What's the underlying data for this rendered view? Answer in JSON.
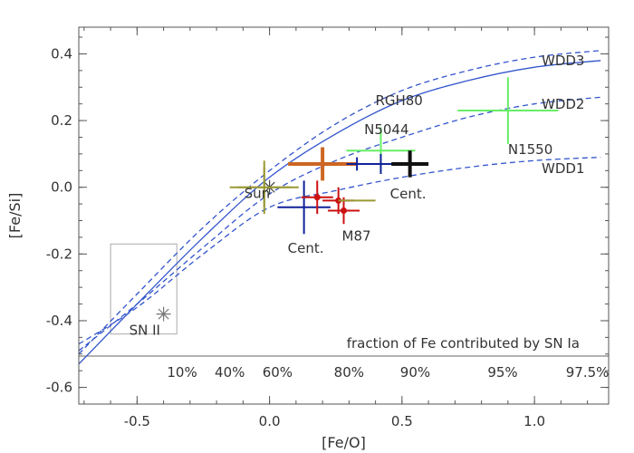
{
  "chart_data": {
    "type": "scatter",
    "title": "",
    "xlabel": "[Fe/O]",
    "ylabel": "[Fe/Si]",
    "xlim": [
      -0.72,
      1.28
    ],
    "ylim": [
      -0.65,
      0.48
    ],
    "xticks": [
      -0.5,
      0.0,
      0.5,
      1.0
    ],
    "xtick_labels": [
      "-0.5",
      "0.0",
      "0.5",
      "1.0"
    ],
    "yticks": [
      -0.6,
      -0.4,
      -0.2,
      0.0,
      0.2,
      0.4
    ],
    "ytick_labels": [
      "-0.6",
      "-0.4",
      "-0.2",
      "0.0",
      "0.2",
      "0.4"
    ],
    "colors": {
      "model_line": "#3355cc",
      "axis": "#555555",
      "olive": "#999933",
      "orange": "#cc6622",
      "light_green": "#66ee66",
      "dark_blue": "#112299",
      "red": "#cc1111",
      "black": "#111111"
    },
    "model_curves": [
      {
        "name": "WDD3",
        "style": "solid",
        "x": [
          -0.72,
          -0.5,
          -0.25,
          0.0,
          0.25,
          0.5,
          0.75,
          1.0,
          1.25
        ],
        "y": [
          -0.53,
          -0.35,
          -0.15,
          0.03,
          0.16,
          0.26,
          0.32,
          0.36,
          0.38
        ]
      },
      {
        "name": "WDD3 (upper)",
        "style": "dashed",
        "x": [
          -0.72,
          -0.5,
          -0.25,
          0.0,
          0.25,
          0.5,
          0.75,
          1.0,
          1.25
        ],
        "y": [
          -0.5,
          -0.32,
          -0.12,
          0.05,
          0.19,
          0.29,
          0.35,
          0.39,
          0.41
        ]
      },
      {
        "name": "WDD2",
        "style": "dashed",
        "x": [
          -0.72,
          -0.5,
          -0.25,
          0.0,
          0.25,
          0.5,
          0.75,
          1.0,
          1.25
        ],
        "y": [
          -0.49,
          -0.35,
          -0.18,
          -0.02,
          0.08,
          0.15,
          0.21,
          0.25,
          0.27
        ]
      },
      {
        "name": "WDD1",
        "style": "dashed",
        "x": [
          -0.72,
          -0.5,
          -0.25,
          0.0,
          0.25,
          0.5,
          0.75,
          1.0,
          1.25
        ],
        "y": [
          -0.47,
          -0.36,
          -0.2,
          -0.06,
          -0.01,
          0.03,
          0.06,
          0.08,
          0.09
        ]
      }
    ],
    "curve_labels": [
      "WDD3",
      "WDD2",
      "WDD1"
    ],
    "points": [
      {
        "label": "Sun",
        "marker": "star",
        "color": "#444444",
        "x": 0.0,
        "y": 0.0,
        "xerr": 0,
        "yerr": 0
      },
      {
        "label": "",
        "marker": "cross",
        "color": "#999933",
        "x": -0.02,
        "y": 0.0,
        "xerr": 0.13,
        "yerr": 0.06
      },
      {
        "label": "",
        "marker": "cross",
        "color": "#999933",
        "x": -0.02,
        "y": 0.0,
        "xerr": 0.1,
        "yerr": 0.08
      },
      {
        "label": "N5044",
        "marker": "cross",
        "color": "#cc6622",
        "x": 0.2,
        "y": 0.07,
        "xerr": 0.13,
        "yerr": 0.05
      },
      {
        "label": "RGH80",
        "marker": "cross",
        "color": "#66ee66",
        "x": 0.42,
        "y": 0.11,
        "xerr": 0.13,
        "yerr": 0.07
      },
      {
        "label": "",
        "marker": "cross",
        "color": "#112299",
        "x": 0.42,
        "y": 0.07,
        "xerr": 0.13,
        "yerr": 0.03
      },
      {
        "label": "",
        "marker": "cross",
        "color": "#112299",
        "x": 0.33,
        "y": 0.07,
        "xerr": 0.03,
        "yerr": 0.02
      },
      {
        "label": "Cent.",
        "marker": "cross",
        "color": "#111111",
        "x": 0.53,
        "y": 0.07,
        "xerr": 0.07,
        "yerr": 0.04
      },
      {
        "label": "N1550",
        "marker": "cross",
        "color": "#66ee66",
        "x": 0.9,
        "y": 0.23,
        "xerr": 0.19,
        "yerr": 0.1
      },
      {
        "label": "Cent.",
        "marker": "cross",
        "color": "#112299",
        "x": 0.13,
        "y": -0.06,
        "xerr": 0.1,
        "yerr": 0.08
      },
      {
        "label": "",
        "marker": "dot",
        "color": "#cc1111",
        "x": 0.18,
        "y": -0.03,
        "xerr": 0.06,
        "yerr": 0.05
      },
      {
        "label": "",
        "marker": "dot",
        "color": "#cc1111",
        "x": 0.26,
        "y": -0.04,
        "xerr": 0.06,
        "yerr": 0.04
      },
      {
        "label": "M87",
        "marker": "dot",
        "color": "#cc1111",
        "x": 0.28,
        "y": -0.07,
        "xerr": 0.06,
        "yerr": 0.04
      },
      {
        "label": "",
        "marker": "cross",
        "color": "#999933",
        "x": 0.33,
        "y": -0.04,
        "xerr": 0.07,
        "yerr": 0.0
      },
      {
        "label": "SN II",
        "marker": "star",
        "color": "#777777",
        "x": -0.4,
        "y": -0.38,
        "xerr": 0,
        "yerr": 0
      }
    ],
    "fraction_caption": "fraction of Fe contributed by SN Ia",
    "fraction_ticks": [
      {
        "label": "10%",
        "x": -0.33
      },
      {
        "label": "40%",
        "x": -0.15
      },
      {
        "label": "60%",
        "x": 0.03
      },
      {
        "label": "80%",
        "x": 0.3
      },
      {
        "label": "90%",
        "x": 0.55
      },
      {
        "label": "95%",
        "x": 0.88
      },
      {
        "label": "97.5%",
        "x": 1.2
      }
    ],
    "sn_ii_box": {
      "x": [
        -0.6,
        -0.35
      ],
      "y": [
        -0.44,
        -0.17
      ]
    }
  }
}
